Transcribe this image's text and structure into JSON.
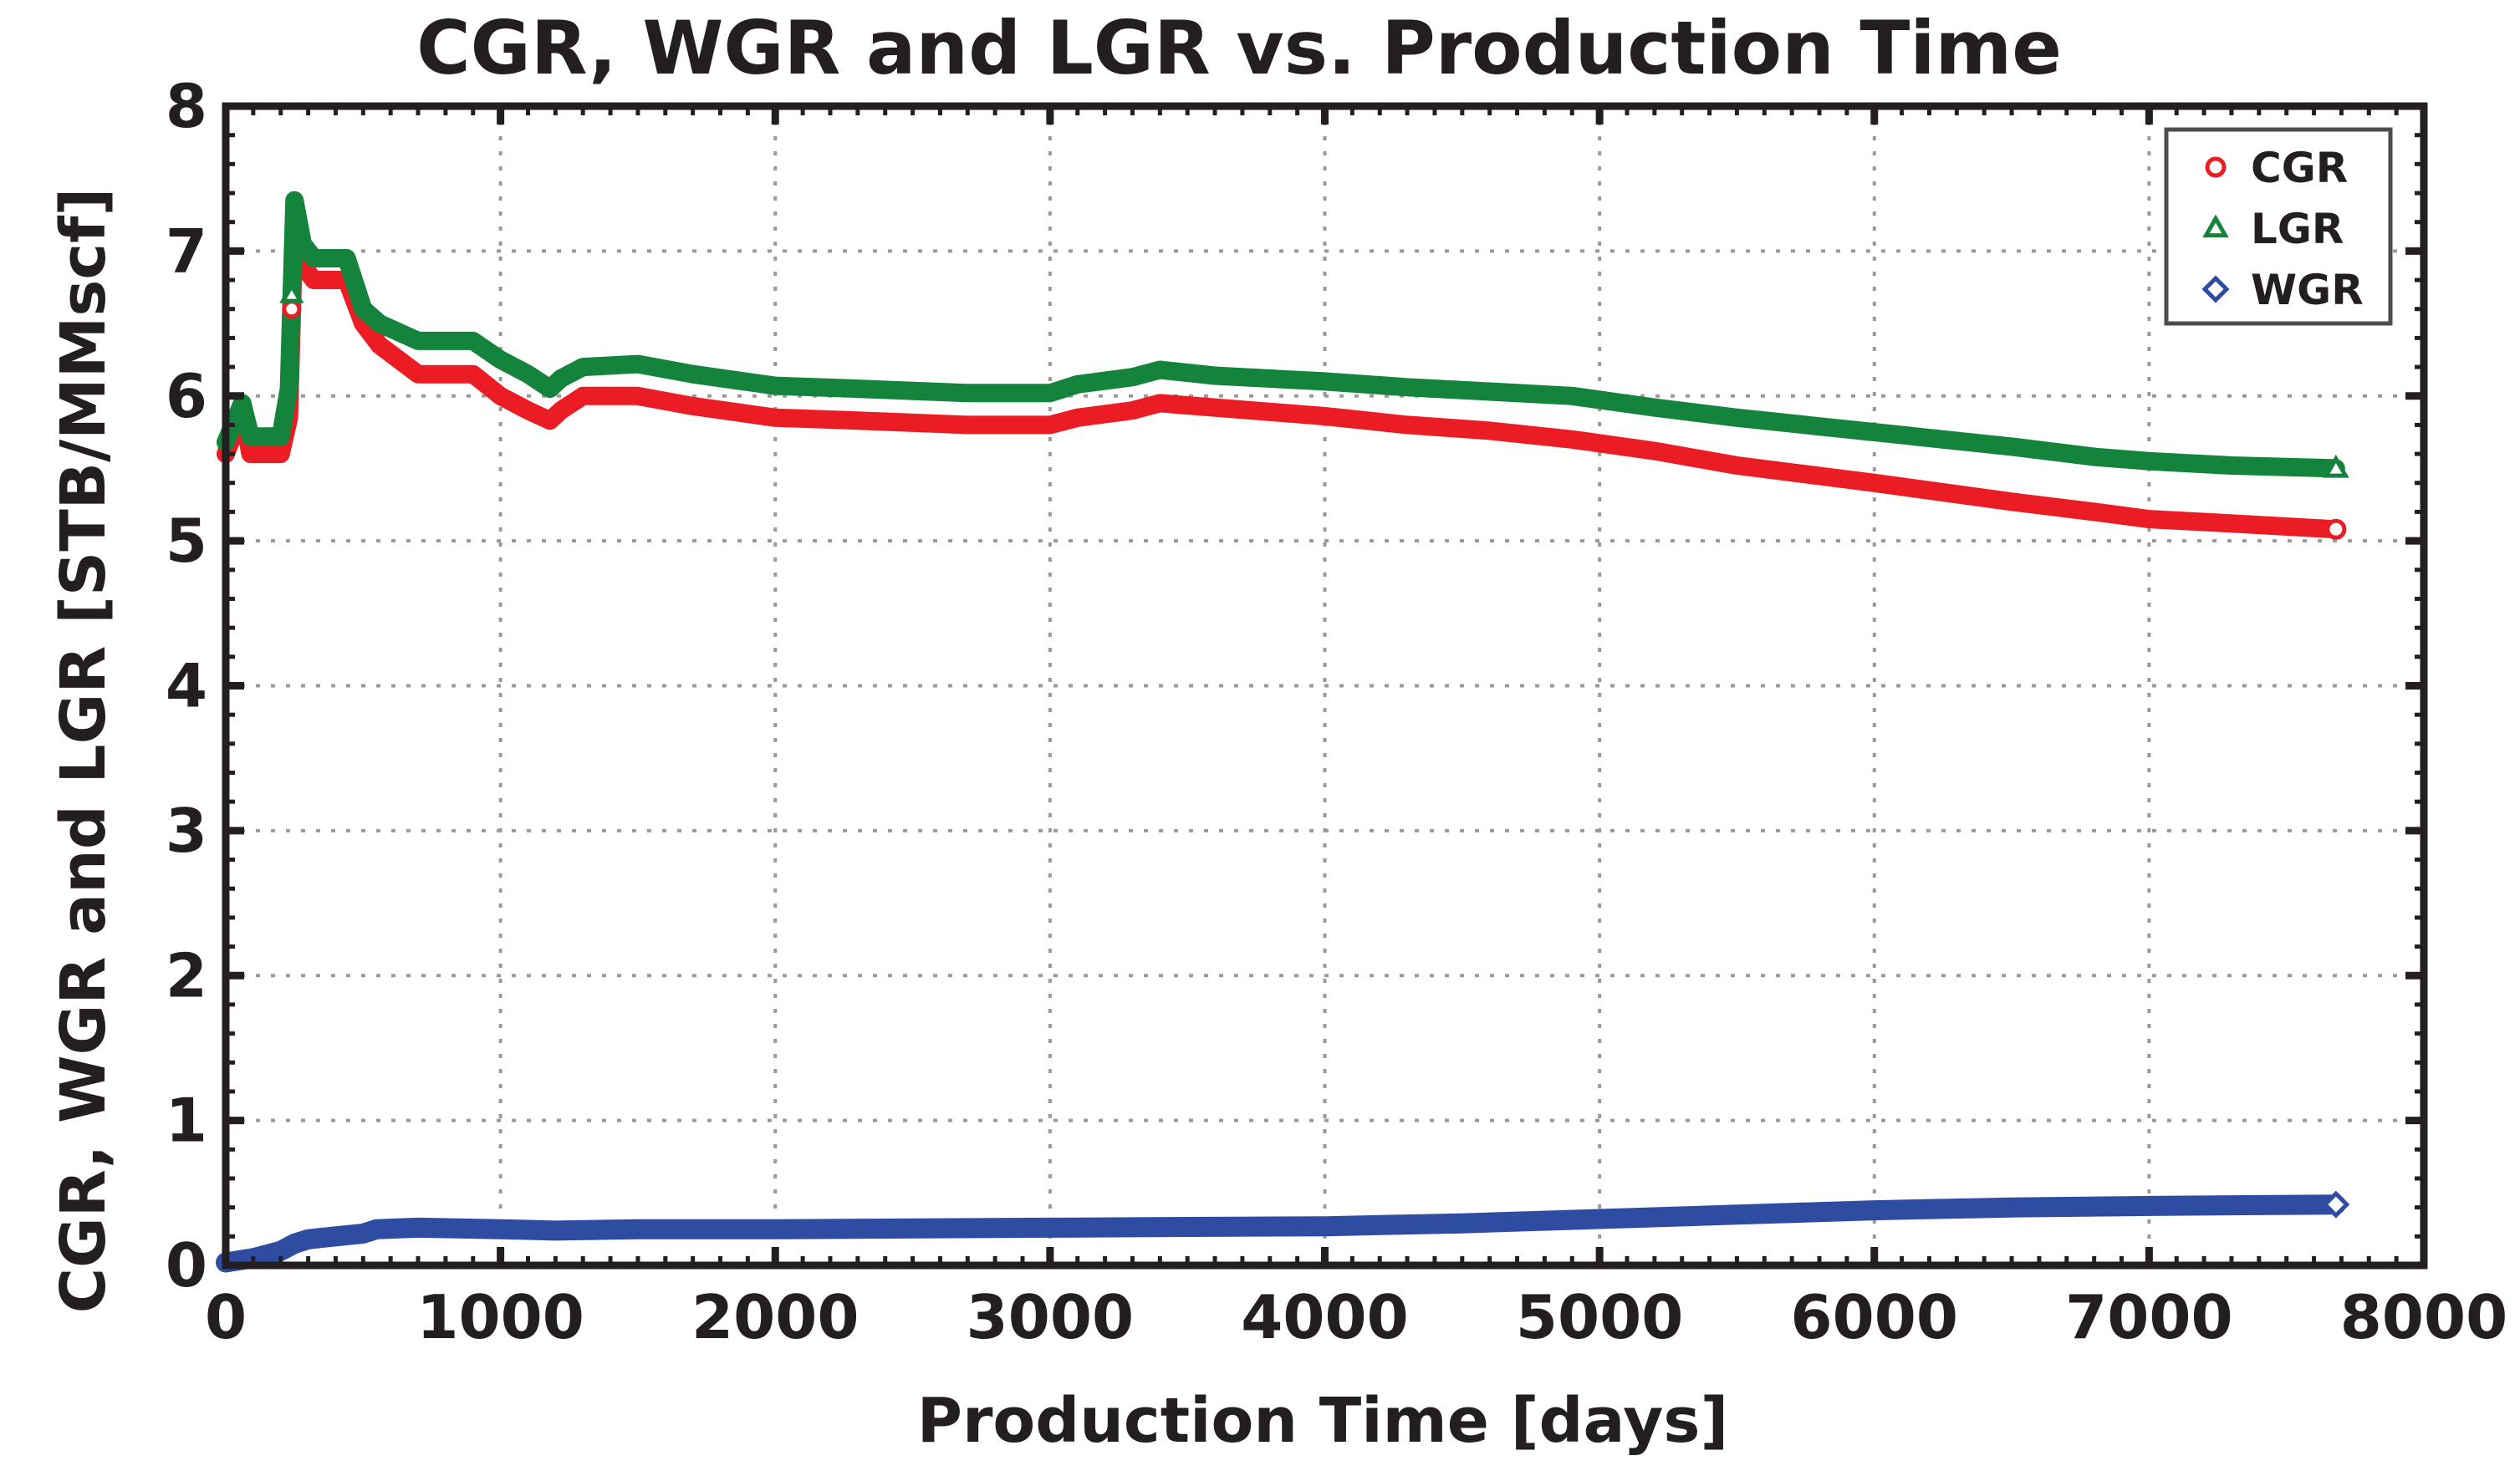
{
  "chart_data": {
    "type": "line",
    "title": "CGR, WGR and LGR vs. Production Time",
    "xlabel": "Production Time [days]",
    "ylabel": "CGR, WGR and LGR [STB/MMscf]",
    "xlim": [
      0,
      8000
    ],
    "ylim": [
      0,
      8
    ],
    "xticks": [
      "0",
      "1000",
      "2000",
      "3000",
      "4000",
      "5000",
      "6000",
      "7000",
      "8000"
    ],
    "yticks": [
      "0",
      "1",
      "2",
      "3",
      "4",
      "5",
      "6",
      "7",
      "8"
    ],
    "grid": true,
    "legend_position": "top-right",
    "series": [
      {
        "name": "CGR",
        "color": "#ec1c24",
        "marker": "circle",
        "x": [
          0,
          60,
          90,
          110,
          200,
          230,
          250,
          280,
          320,
          440,
          500,
          560,
          700,
          900,
          1000,
          1100,
          1180,
          1220,
          1300,
          1500,
          1700,
          2000,
          2300,
          2700,
          3000,
          3100,
          3300,
          3400,
          3600,
          4000,
          4300,
          4600,
          4900,
          5200,
          5500,
          6000,
          6500,
          6800,
          7000,
          7300,
          7680
        ],
        "values": [
          5.6,
          5.9,
          5.6,
          5.6,
          5.6,
          5.85,
          7.25,
          6.9,
          6.8,
          6.8,
          6.5,
          6.35,
          6.15,
          6.15,
          6.0,
          5.9,
          5.83,
          5.9,
          6.0,
          6.0,
          5.93,
          5.85,
          5.83,
          5.8,
          5.8,
          5.85,
          5.9,
          5.95,
          5.92,
          5.86,
          5.8,
          5.76,
          5.7,
          5.62,
          5.52,
          5.4,
          5.27,
          5.2,
          5.15,
          5.12,
          5.08
        ]
      },
      {
        "name": "LGR",
        "color": "#14843c",
        "marker": "triangle",
        "x": [
          0,
          60,
          90,
          110,
          200,
          230,
          250,
          280,
          320,
          440,
          500,
          560,
          700,
          900,
          1000,
          1100,
          1180,
          1220,
          1300,
          1500,
          1700,
          2000,
          2300,
          2700,
          3000,
          3100,
          3300,
          3400,
          3600,
          4000,
          4300,
          4600,
          4900,
          5200,
          5500,
          6000,
          6500,
          6800,
          7000,
          7300,
          7680
        ],
        "values": [
          5.68,
          5.95,
          5.72,
          5.72,
          5.72,
          6.05,
          7.35,
          7.05,
          6.95,
          6.95,
          6.6,
          6.5,
          6.38,
          6.38,
          6.25,
          6.15,
          6.05,
          6.12,
          6.2,
          6.22,
          6.15,
          6.07,
          6.05,
          6.02,
          6.02,
          6.08,
          6.13,
          6.18,
          6.14,
          6.1,
          6.06,
          6.03,
          6.0,
          5.92,
          5.85,
          5.75,
          5.65,
          5.58,
          5.55,
          5.52,
          5.5
        ]
      },
      {
        "name": "WGR",
        "color": "#2e4da2",
        "marker": "diamond",
        "x": [
          0,
          100,
          200,
          250,
          300,
          400,
          500,
          550,
          700,
          1000,
          1200,
          1500,
          2000,
          3000,
          4000,
          4500,
          5000,
          5500,
          6000,
          6500,
          7000,
          7680
        ],
        "values": [
          0.02,
          0.05,
          0.1,
          0.15,
          0.18,
          0.2,
          0.22,
          0.25,
          0.26,
          0.25,
          0.24,
          0.25,
          0.25,
          0.26,
          0.27,
          0.29,
          0.32,
          0.35,
          0.38,
          0.4,
          0.41,
          0.42
        ]
      }
    ]
  }
}
